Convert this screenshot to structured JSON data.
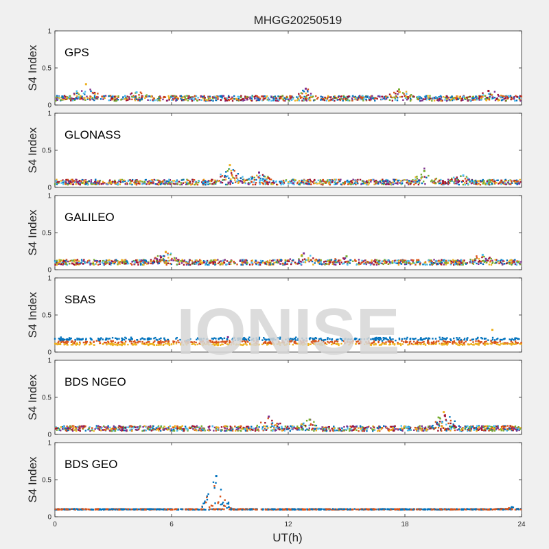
{
  "figure": {
    "title": "MHGG20250519",
    "watermark": "IONISE",
    "xlabel": "UT(h)",
    "ylabel": "S4 Index"
  },
  "chart_data": {
    "type": "scatter",
    "title": "MHGG20250519",
    "xlabel": "UT(h)",
    "ylabel": "S4 Index",
    "xlim": [
      0,
      24
    ],
    "xticks": [
      0,
      6,
      12,
      18,
      24
    ],
    "ylim": [
      0,
      1
    ],
    "yticks": [
      0,
      0.5,
      1
    ],
    "grid": false,
    "series_colors": [
      "#0072BD",
      "#D95319",
      "#EDB120",
      "#7E2F8E",
      "#77AC30",
      "#4DBEEE",
      "#A2142F"
    ],
    "panels": [
      {
        "name": "GPS",
        "baseline": 0.09,
        "spread": 0.035,
        "peaks": [
          [
            1.6,
            0.28
          ],
          [
            12.9,
            0.22
          ],
          [
            17.7,
            0.21
          ],
          [
            4.2,
            0.17
          ],
          [
            22.3,
            0.19
          ]
        ]
      },
      {
        "name": "GLONASS",
        "baseline": 0.07,
        "spread": 0.035,
        "peaks": [
          [
            9.0,
            0.3
          ],
          [
            10.5,
            0.2
          ],
          [
            19.0,
            0.22
          ],
          [
            21.0,
            0.16
          ]
        ]
      },
      {
        "name": "GALILEO",
        "baseline": 0.1,
        "spread": 0.035,
        "peaks": [
          [
            5.7,
            0.24
          ],
          [
            12.8,
            0.22
          ],
          [
            15.0,
            0.18
          ],
          [
            22.0,
            0.2
          ]
        ]
      },
      {
        "name": "SBAS",
        "baseline": 0.12,
        "spread": 0.02,
        "bands": [
          [
            0.16,
            0.19
          ],
          [
            0.12,
            0.15
          ],
          [
            0.1,
            0.11
          ]
        ],
        "peaks": [
          [
            22.5,
            0.3
          ],
          [
            8.9,
            0.2
          ]
        ]
      },
      {
        "name": "BDS NGEO",
        "baseline": 0.08,
        "spread": 0.035,
        "peaks": [
          [
            20.0,
            0.3
          ],
          [
            11.0,
            0.24
          ],
          [
            13.1,
            0.2
          ]
        ]
      },
      {
        "name": "BDS GEO",
        "baseline": 0.1,
        "spread": 0.006,
        "peaks": [
          [
            8.3,
            0.55
          ],
          [
            23.5,
            0.13
          ]
        ]
      }
    ]
  }
}
